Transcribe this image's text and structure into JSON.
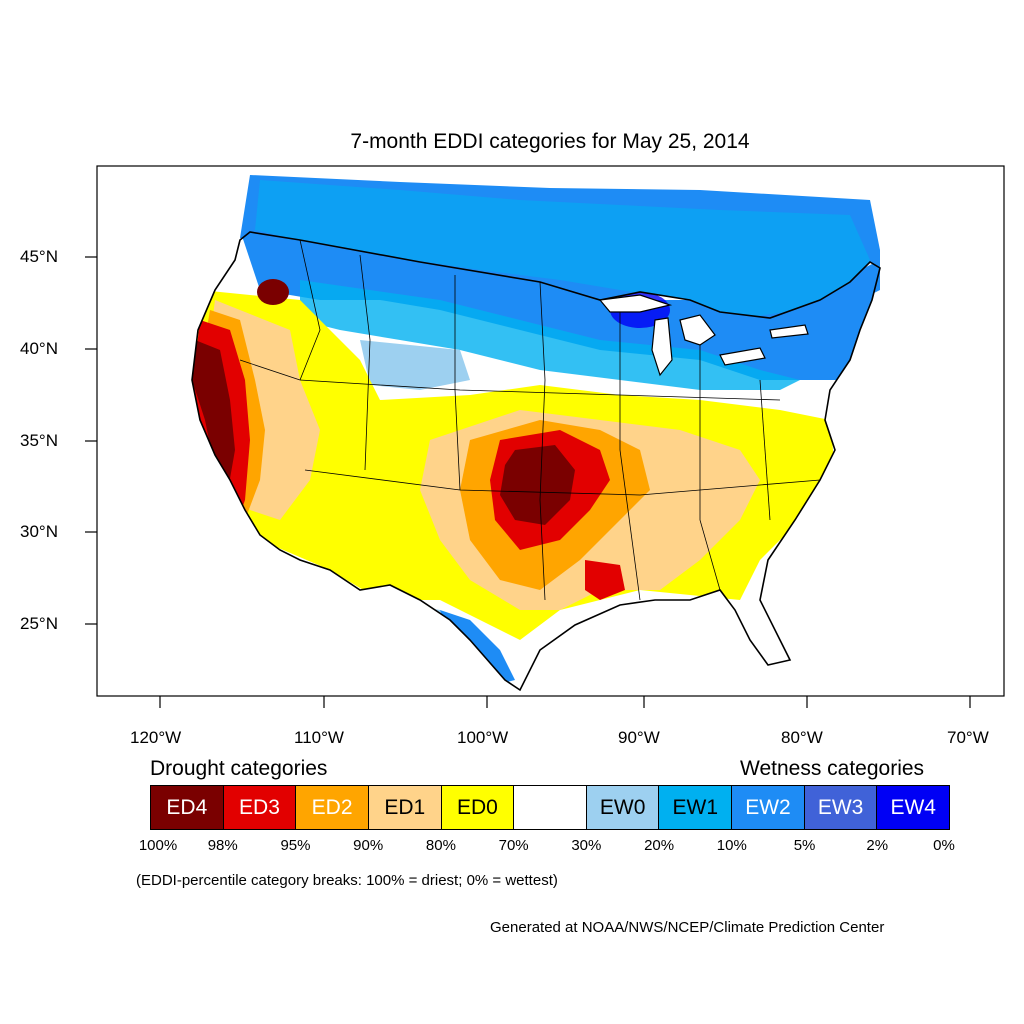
{
  "title": "7-month EDDI categories for May 25, 2014",
  "axes": {
    "lat_labels": [
      "45°N",
      "40°N",
      "35°N",
      "30°N",
      "25°N"
    ],
    "lon_labels": [
      "120°W",
      "110°W",
      "100°W",
      "90°W",
      "80°W",
      "70°W"
    ]
  },
  "legend": {
    "drought_heading": "Drought categories",
    "wetness_heading": "Wetness categories",
    "categories": [
      {
        "label": "ED4",
        "color": "#7a0000",
        "text_color": "#ffffff"
      },
      {
        "label": "ED3",
        "color": "#e20000",
        "text_color": "#ffffff"
      },
      {
        "label": "ED2",
        "color": "#ffa500",
        "text_color": "#ffffff"
      },
      {
        "label": "ED1",
        "color": "#ffd38a",
        "text_color": "#000000"
      },
      {
        "label": "ED0",
        "color": "#ffff00",
        "text_color": "#000000"
      },
      {
        "label": "",
        "color": "#ffffff",
        "text_color": "#000000"
      },
      {
        "label": "EW0",
        "color": "#9dd0f0",
        "text_color": "#000000"
      },
      {
        "label": "EW1",
        "color": "#00b0f0",
        "text_color": "#000000"
      },
      {
        "label": "EW2",
        "color": "#1e8cf5",
        "text_color": "#ffffff"
      },
      {
        "label": "EW3",
        "color": "#4062d8",
        "text_color": "#ffffff"
      },
      {
        "label": "EW4",
        "color": "#0000f5",
        "text_color": "#ffffff"
      }
    ],
    "breaks": [
      "100%",
      "98%",
      "95%",
      "90%",
      "80%",
      "70%",
      "30%",
      "20%",
      "10%",
      "5%",
      "2%",
      "0%"
    ],
    "note": "(EDDI-percentile category breaks: 100% = driest; 0% = wettest)"
  },
  "credit": "Generated at NOAA/NWS/NCEP/Climate Prediction Center"
}
